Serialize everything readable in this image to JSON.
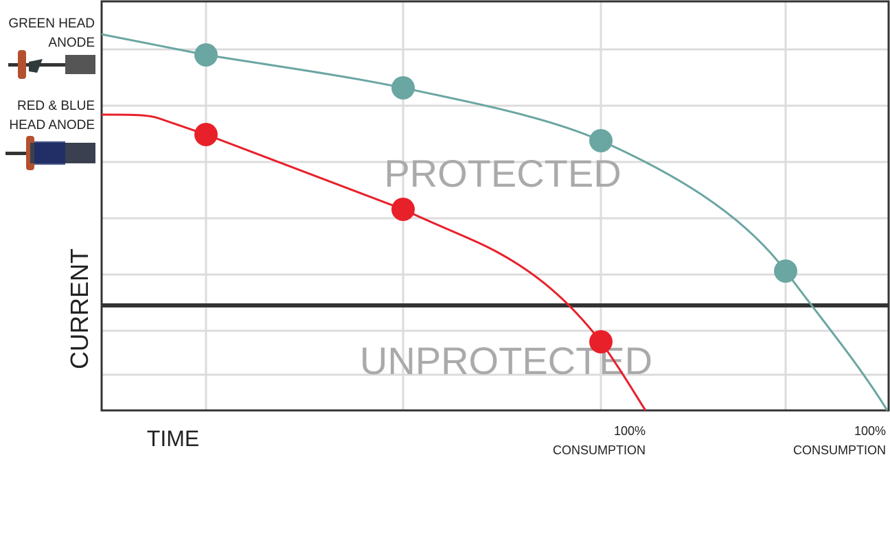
{
  "legend": [
    {
      "lines": [
        "GREEN HEAD",
        "ANODE"
      ]
    },
    {
      "lines": [
        "RED & BLUE",
        "HEAD ANODE"
      ]
    }
  ],
  "regions": {
    "above": "PROTECTED",
    "below": "UNPROTECTED"
  },
  "axes": {
    "y": "CURRENT",
    "x": "TIME"
  },
  "end_markers": [
    {
      "lines": [
        "100%",
        "CONSUMPTION"
      ]
    },
    {
      "lines": [
        "100%",
        "CONSUMPTION"
      ]
    }
  ]
}
